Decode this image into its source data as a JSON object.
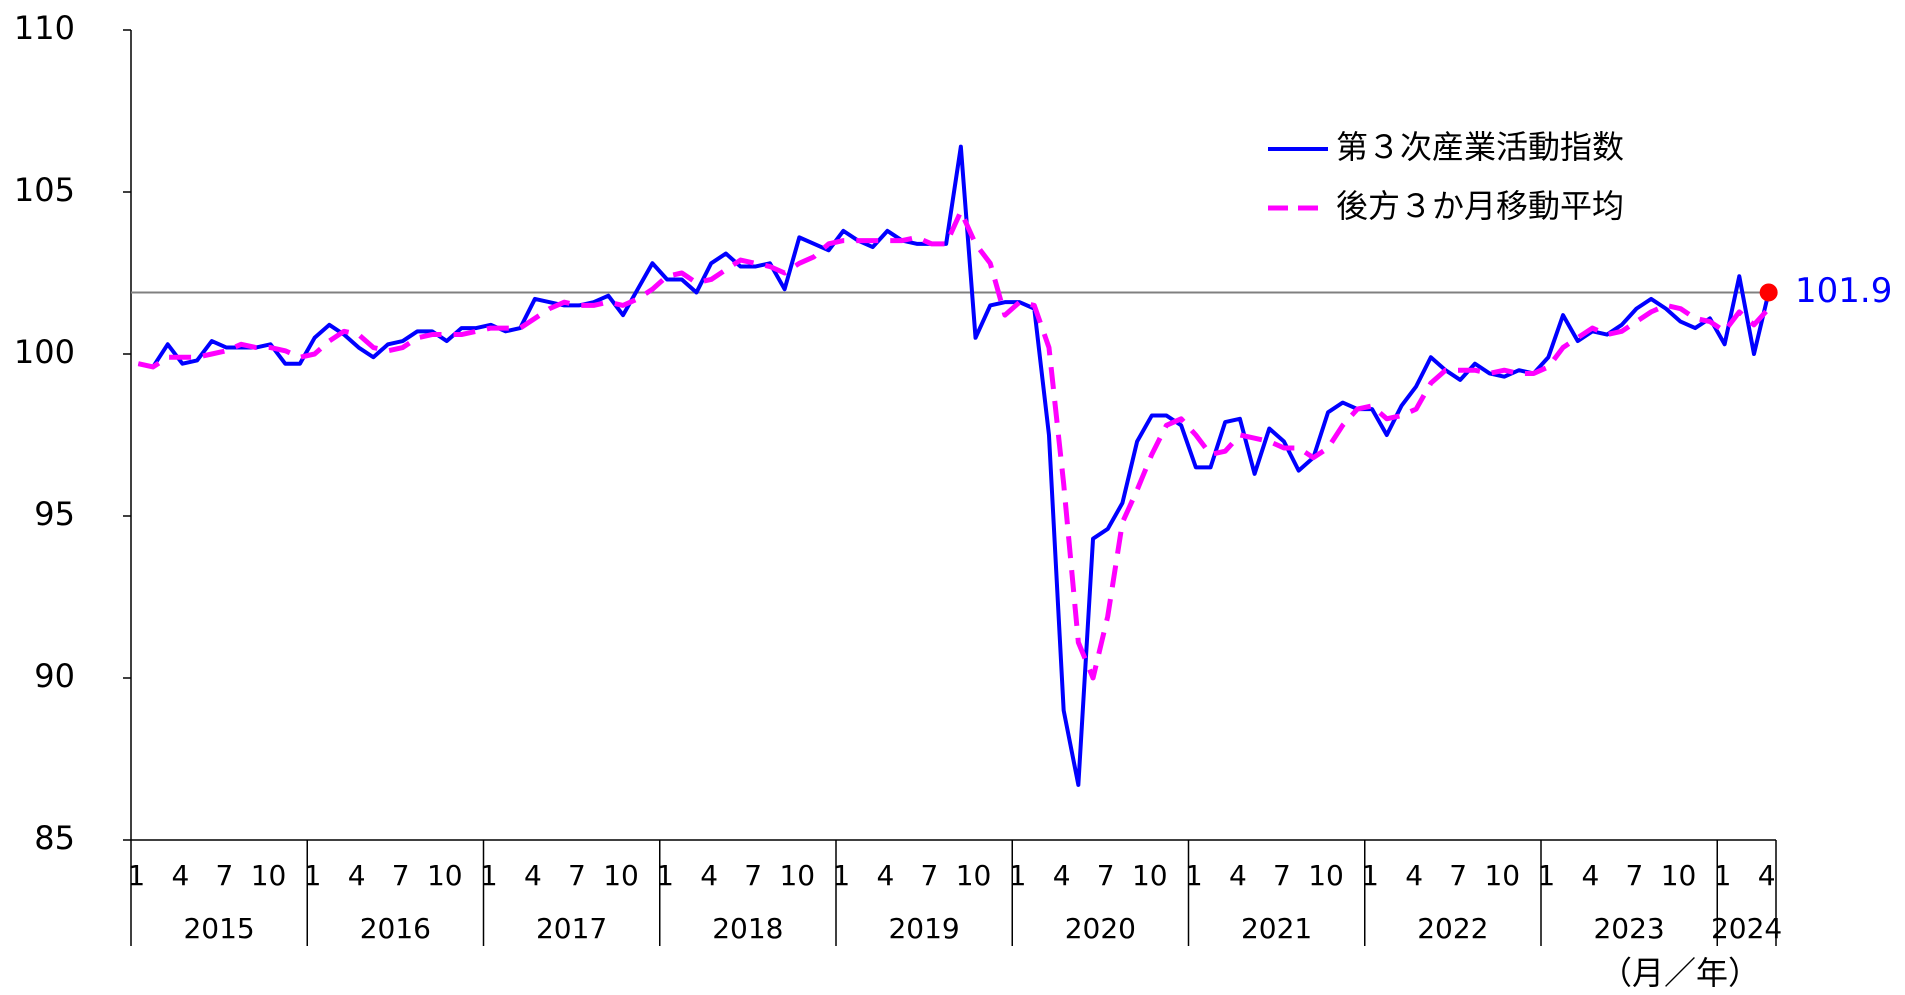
{
  "chart_data": {
    "type": "line",
    "categories": [
      "1",
      null,
      null,
      "4",
      null,
      null,
      "7",
      null,
      null,
      "10",
      null,
      null,
      "1",
      null,
      null,
      "4",
      null,
      null,
      "7",
      null,
      null,
      "10",
      null,
      null,
      "1",
      null,
      null,
      "4",
      null,
      null,
      "7",
      null,
      null,
      "10",
      null,
      null,
      "1",
      null,
      null,
      "4",
      null,
      null,
      "7",
      null,
      null,
      "10",
      null,
      null,
      "1",
      null,
      null,
      "4",
      null,
      null,
      "7",
      null,
      null,
      "10",
      null,
      null,
      "1",
      null,
      null,
      "4",
      null,
      null,
      "7",
      null,
      null,
      "10",
      null,
      null,
      "1",
      null,
      null,
      "4",
      null,
      null,
      "7",
      null,
      null,
      "10",
      null,
      null,
      "1",
      null,
      null,
      "4",
      null,
      null,
      "7",
      null,
      null,
      "10",
      null,
      null,
      "1",
      null,
      null,
      "4",
      null,
      null,
      "7",
      null,
      null,
      "10",
      null,
      null,
      "1",
      null,
      null,
      "4"
    ],
    "years": [
      "2015",
      "2016",
      "2017",
      "2018",
      "2019",
      "2020",
      "2021",
      "2022",
      "2023",
      "2024"
    ],
    "x_label": "（月／年）",
    "series": [
      {
        "name": "第３次産業活動指数",
        "color": "#0000ff",
        "dash": false,
        "values": [
          99.7,
          99.6,
          100.3,
          99.7,
          99.8,
          100.4,
          100.2,
          100.2,
          100.2,
          100.3,
          99.7,
          99.7,
          100.5,
          100.9,
          100.6,
          100.2,
          99.9,
          100.3,
          100.4,
          100.7,
          100.7,
          100.4,
          100.8,
          100.8,
          100.9,
          100.7,
          100.8,
          101.7,
          101.6,
          101.5,
          101.5,
          101.6,
          101.8,
          101.2,
          102.0,
          102.8,
          102.3,
          102.3,
          101.9,
          102.8,
          103.1,
          102.7,
          102.7,
          102.8,
          102.0,
          103.6,
          103.4,
          103.2,
          103.8,
          103.5,
          103.3,
          103.8,
          103.5,
          103.4,
          103.4,
          103.4,
          106.4,
          100.5,
          101.5,
          101.6,
          101.6,
          101.4,
          97.5,
          89.0,
          86.7,
          94.3,
          94.6,
          95.4,
          97.3,
          98.1,
          98.1,
          97.8,
          96.5,
          96.5,
          97.9,
          98.0,
          96.3,
          97.7,
          97.3,
          96.4,
          96.8,
          98.2,
          98.5,
          98.3,
          98.3,
          97.5,
          98.4,
          99.0,
          99.9,
          99.5,
          99.2,
          99.7,
          99.4,
          99.3,
          99.5,
          99.4,
          99.9,
          101.2,
          100.4,
          100.7,
          100.6,
          100.9,
          101.4,
          101.7,
          101.4,
          101.0,
          100.8,
          101.1,
          100.3,
          102.4,
          100.0,
          101.9
        ]
      },
      {
        "name": "後方３か月移動平均",
        "color": "#ff00ff",
        "dash": true,
        "values": [
          99.7,
          99.6,
          99.9,
          99.9,
          99.9,
          100.0,
          100.1,
          100.3,
          100.2,
          100.2,
          100.1,
          99.9,
          100.0,
          100.4,
          100.7,
          100.6,
          100.2,
          100.1,
          100.2,
          100.5,
          100.6,
          100.6,
          100.6,
          100.7,
          100.8,
          100.8,
          100.8,
          101.1,
          101.4,
          101.6,
          101.5,
          101.5,
          101.6,
          101.5,
          101.7,
          102.0,
          102.4,
          102.5,
          102.2,
          102.3,
          102.6,
          102.9,
          102.8,
          102.7,
          102.5,
          102.8,
          103.0,
          103.4,
          103.5,
          103.5,
          103.5,
          103.5,
          103.5,
          103.6,
          103.4,
          103.4,
          104.4,
          103.4,
          102.8,
          101.2,
          101.6,
          101.5,
          100.2,
          96.0,
          91.1,
          90.0,
          91.9,
          94.8,
          95.8,
          96.9,
          97.8,
          98.0,
          97.5,
          96.9,
          97.0,
          97.5,
          97.4,
          97.3,
          97.1,
          97.1,
          96.8,
          97.1,
          97.8,
          98.3,
          98.4,
          98.0,
          98.1,
          98.3,
          99.1,
          99.5,
          99.5,
          99.5,
          99.4,
          99.5,
          99.4,
          99.4,
          99.6,
          100.2,
          100.5,
          100.8,
          100.6,
          100.7,
          101.0,
          101.3,
          101.5,
          101.4,
          101.1,
          101.0,
          100.7,
          101.3,
          100.9,
          101.4
        ]
      }
    ],
    "reference": {
      "value": 101.9,
      "line_color": "#808080",
      "marker_color": "#ff0000",
      "label_color": "#0000ff"
    },
    "ylim": [
      85,
      110
    ],
    "yticks": [
      85,
      90,
      95,
      100,
      105,
      110
    ],
    "grid": false
  }
}
